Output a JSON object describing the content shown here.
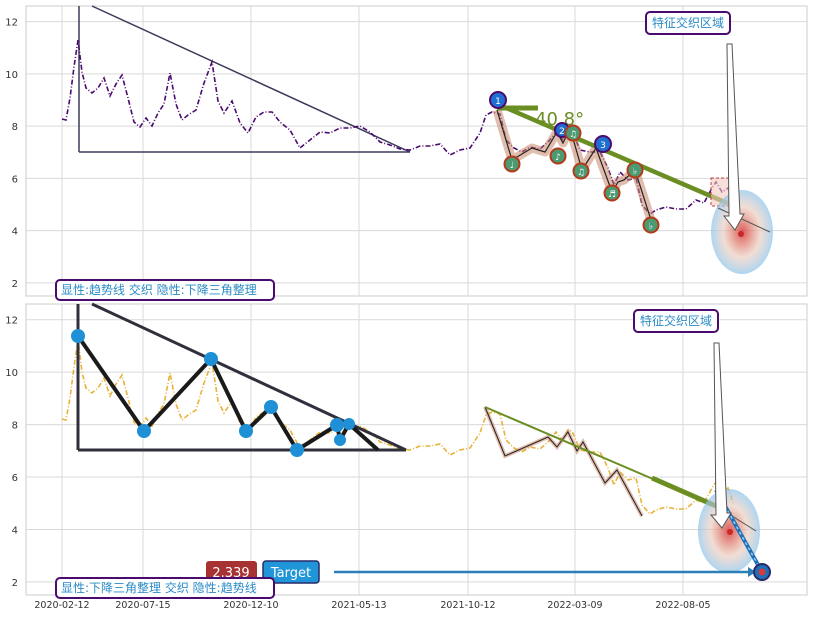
{
  "chart_data": [
    {
      "type": "line",
      "panel": "top",
      "xlabels": [
        "2020-02-12",
        "2020-07-15",
        "2020-12-10",
        "2021-05-13",
        "2021-10-12",
        "2022-03-09",
        "2022-08-05"
      ],
      "ylim": [
        1.5,
        12.6
      ],
      "yticks": [
        2,
        4,
        6,
        8,
        10,
        12
      ],
      "grid": true,
      "series_color": "#4b0a6e",
      "price_samples": [
        8.3,
        8.0,
        9.0,
        9.6,
        10.2,
        10.6,
        11.4,
        9.6,
        9.4,
        9.1,
        9.6,
        8.9,
        9.9,
        9.4,
        9.9,
        8.3,
        7.9,
        8.4,
        8.1,
        9.2,
        10.1,
        8.8,
        8.1,
        9.4,
        10.6,
        9.0,
        7.8,
        8.4,
        8.7,
        8.2,
        7.2,
        7.6,
        8.0,
        7.4,
        7.1,
        7.6,
        8.0,
        7.7,
        7.3,
        7.1,
        7.2,
        7.5,
        7.1,
        6.9,
        7.3,
        7.0,
        7.5,
        7.2,
        6.9,
        7.4,
        8.7,
        8.3,
        6.8,
        7.0,
        7.3,
        7.1,
        7.6,
        6.5,
        7.1,
        6.2,
        5.8,
        6.4,
        4.8,
        5.1,
        4.9,
        5.2,
        5.4,
        5.5,
        5.3,
        5.0
      ],
      "annotations": {
        "angle_label": "40.8°",
        "zone_label": "特征交织区域",
        "caption": "显性:趋势线 交织 隐性:下降三角整理",
        "markers_top": [
          "1",
          "2",
          "3"
        ],
        "markers_bottom": [
          "♩",
          "♫",
          "♪",
          "♫",
          "♬",
          "♭",
          "♭"
        ]
      }
    },
    {
      "type": "line",
      "panel": "bottom",
      "xlabels": [
        "2020-02-12",
        "2020-07-15",
        "2020-12-10",
        "2021-05-13",
        "2021-10-12",
        "2022-03-09",
        "2022-08-05"
      ],
      "ylim": [
        1.5,
        12.6
      ],
      "yticks": [
        2,
        4,
        6,
        8,
        10,
        12
      ],
      "grid": true,
      "series_color": "#e8b23a",
      "pivots": [
        11.5,
        7.8,
        10.6,
        7.8,
        8.7,
        7.1,
        8.0,
        7.5,
        8.1
      ],
      "annotations": {
        "zone_label": "特征交织区域",
        "caption": "显性:下降三角整理 交织 隐性:趋势线",
        "target_value": "2.339",
        "target_label": "Target"
      }
    }
  ]
}
